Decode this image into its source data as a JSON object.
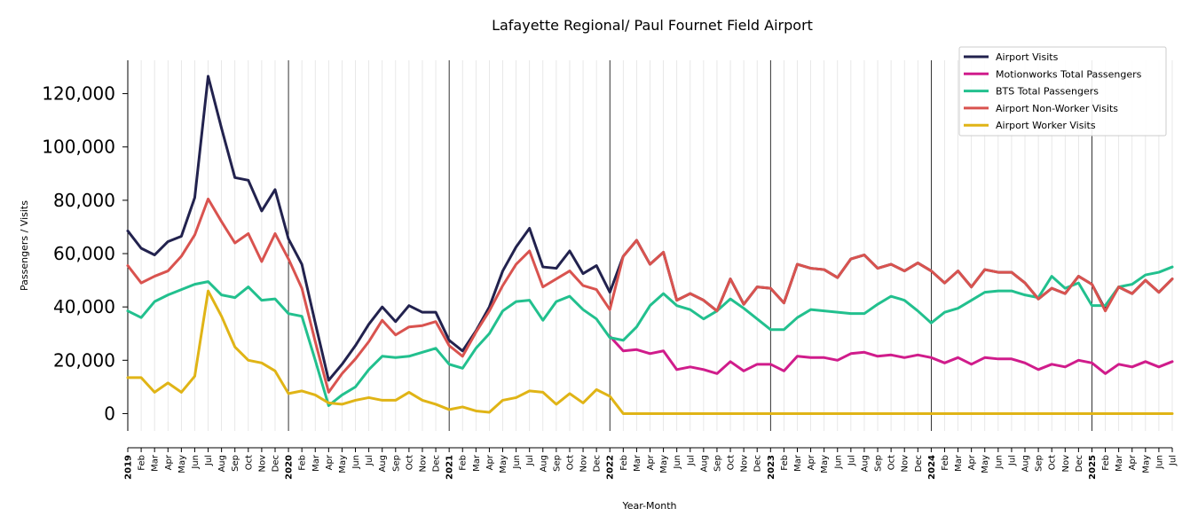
{
  "chart_data": {
    "type": "line",
    "title": "Lafayette Regional/ Paul Fournet Field Airport",
    "xlabel": "Year-Month",
    "ylabel": "Passengers / Visits",
    "ylim": [
      -6500,
      132500
    ],
    "yticks": [
      0,
      20000,
      40000,
      60000,
      80000,
      100000,
      120000
    ],
    "ytick_labels": [
      "0",
      "20,000",
      "40,000",
      "60,000",
      "80,000",
      "100,000",
      "120,000"
    ],
    "month_labels": [
      "Feb",
      "Mar",
      "Apr",
      "May",
      "Jun",
      "Jul",
      "Aug",
      "Sep",
      "Oct",
      "Nov",
      "Dec"
    ],
    "years": [
      "2019",
      "2020",
      "2021",
      "2022",
      "2023",
      "2024",
      "2025"
    ],
    "n_months": 79,
    "legend_position": "top-right",
    "grid": "vertical monthly lines, bold yearly separators",
    "series": [
      {
        "name": "Airport Visits",
        "color": "#22224e",
        "values": [
          68500,
          62000,
          59500,
          64500,
          66500,
          81000,
          126500,
          107000,
          88500,
          87500,
          76000,
          84000,
          65500,
          56000,
          34000,
          12500,
          18500,
          25500,
          33500,
          40000,
          34500,
          40500,
          38000,
          38000,
          27500,
          23500,
          31000,
          40000,
          53500,
          62500,
          69500,
          55000,
          54500,
          61000,
          52500,
          55500,
          45500,
          59000,
          65000,
          56000,
          60500,
          42500,
          45000,
          42500,
          38500,
          50500,
          41000,
          47500,
          47000,
          41500,
          56000,
          54500,
          54000,
          51000,
          58000,
          59500,
          54500,
          56000,
          53500,
          56500,
          53500,
          49000,
          53500,
          47500,
          54000,
          53000,
          53000,
          49000,
          43000,
          47000,
          45000,
          51500,
          48500,
          39000,
          47500,
          45000,
          50000,
          45500,
          50500
        ]
      },
      {
        "name": "Motionworks Total Passengers",
        "color": "#d01c8b",
        "values": [
          null,
          null,
          null,
          null,
          null,
          null,
          null,
          null,
          null,
          null,
          null,
          null,
          null,
          null,
          null,
          null,
          null,
          null,
          null,
          null,
          null,
          null,
          null,
          null,
          null,
          null,
          null,
          null,
          null,
          null,
          null,
          null,
          null,
          null,
          null,
          null,
          29000,
          23500,
          24000,
          22500,
          23500,
          16500,
          17500,
          16500,
          15000,
          19500,
          16000,
          18500,
          18500,
          16000,
          21500,
          21000,
          21000,
          20000,
          22500,
          23000,
          21500,
          22000,
          21000,
          22000,
          21000,
          19000,
          21000,
          18500,
          21000,
          20500,
          20500,
          19000,
          16500,
          18500,
          17500,
          20000,
          19000,
          15000,
          18500,
          17500,
          19500,
          17500,
          19500
        ]
      },
      {
        "name": "BTS Total Passengers",
        "color": "#22c08e",
        "values": [
          38500,
          36000,
          42000,
          44500,
          46500,
          48500,
          49500,
          44500,
          43500,
          47500,
          42500,
          43000,
          37500,
          36500,
          20000,
          3000,
          7000,
          10000,
          16500,
          21500,
          21000,
          21500,
          23000,
          24500,
          18500,
          17000,
          24500,
          30000,
          38500,
          42000,
          42500,
          35000,
          42000,
          44000,
          39000,
          35500,
          28500,
          27500,
          32500,
          40500,
          45000,
          40500,
          39000,
          35500,
          38500,
          43000,
          39500,
          35500,
          31500,
          31500,
          36000,
          39000,
          38500,
          38000,
          37500,
          37500,
          41000,
          44000,
          42500,
          38500,
          34000,
          38000,
          39500,
          42500,
          45500,
          46000,
          46000,
          44500,
          43500,
          51500,
          47000,
          49000,
          40500,
          40500,
          47500,
          48500,
          52000,
          53000,
          55000
        ]
      },
      {
        "name": "Airport Non-Worker Visits",
        "color": "#d9534f",
        "values": [
          55500,
          49000,
          51500,
          53500,
          59000,
          67000,
          80500,
          72000,
          64000,
          67500,
          57000,
          67500,
          58000,
          47000,
          27000,
          8000,
          15000,
          20500,
          27000,
          35000,
          29500,
          32500,
          33000,
          34500,
          25500,
          21500,
          30500,
          38500,
          48000,
          56000,
          61000,
          47500,
          50500,
          53500,
          48000,
          46500,
          39000,
          59000,
          65000,
          56000,
          60500,
          42500,
          45000,
          42500,
          38500,
          50500,
          41000,
          47500,
          47000,
          41500,
          56000,
          54500,
          54000,
          51000,
          58000,
          59500,
          54500,
          56000,
          53500,
          56500,
          53500,
          49000,
          53500,
          47500,
          54000,
          53000,
          53000,
          49000,
          43000,
          47000,
          45000,
          51500,
          48500,
          38500,
          47500,
          45000,
          50000,
          45500,
          50500
        ]
      },
      {
        "name": "Airport Worker Visits",
        "color": "#e0b416",
        "values": [
          13500,
          13500,
          8000,
          11500,
          8000,
          14000,
          46000,
          36500,
          25000,
          20000,
          19000,
          16000,
          7500,
          8500,
          7000,
          4000,
          3500,
          5000,
          6000,
          5000,
          5000,
          8000,
          5000,
          3500,
          1500,
          2500,
          1000,
          500,
          5000,
          6000,
          8500,
          8000,
          3500,
          7500,
          4000,
          9000,
          6500,
          0,
          0,
          0,
          0,
          0,
          0,
          0,
          0,
          0,
          0,
          0,
          0,
          0,
          0,
          0,
          0,
          0,
          0,
          0,
          0,
          0,
          0,
          0,
          0,
          0,
          0,
          0,
          0,
          0,
          0,
          0,
          0,
          0,
          0,
          0,
          0,
          0,
          0,
          0,
          0,
          0,
          0
        ]
      }
    ]
  }
}
